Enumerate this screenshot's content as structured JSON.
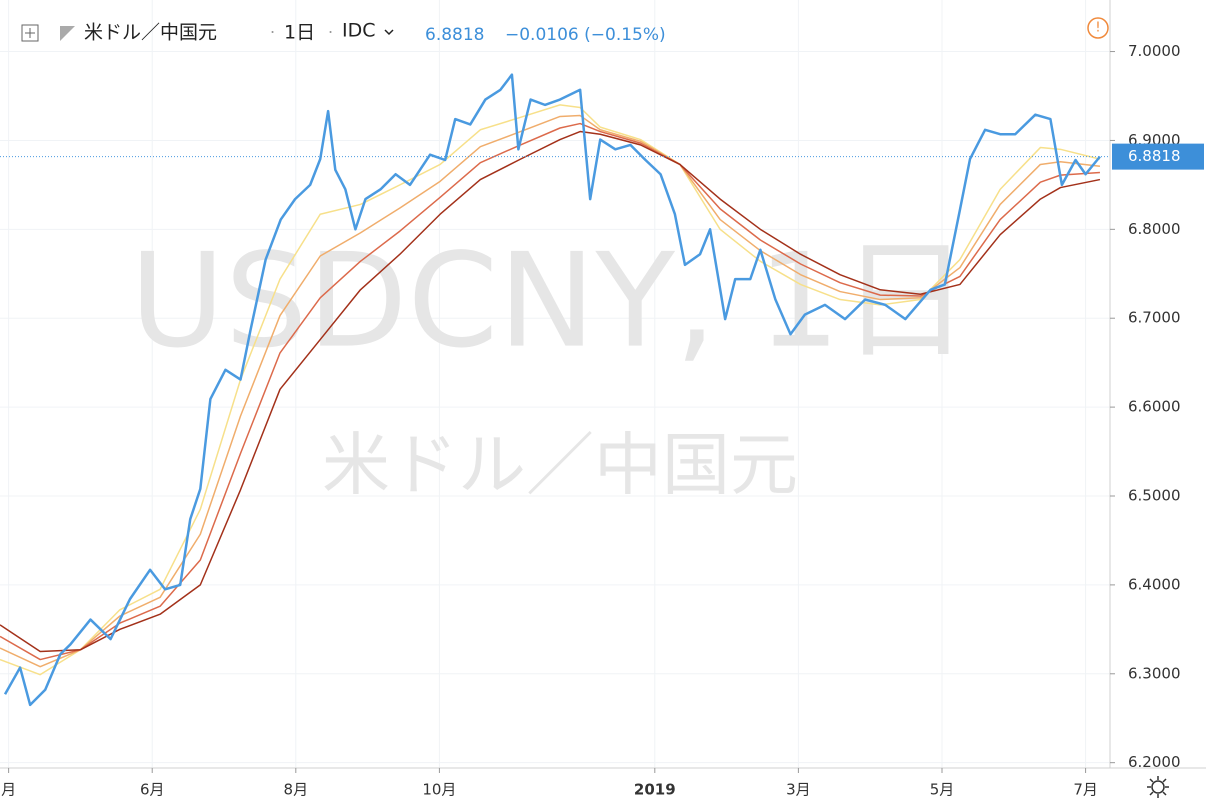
{
  "header": {
    "symbol": "米ドル／中国元",
    "interval": "1日",
    "source": "IDC",
    "last": 6.8818,
    "change": "−0.0106 (−0.15%)"
  },
  "watermark": {
    "line1": "USDCNY, 1日",
    "line2": "米ドル／中国元"
  },
  "chart_data": {
    "type": "line",
    "xlim": [
      3.88,
      19.34
    ],
    "ylim": [
      6.194,
      7.058
    ],
    "xticks": [
      {
        "value": 4,
        "label": "月"
      },
      {
        "value": 6,
        "label": "6月"
      },
      {
        "value": 8,
        "label": "8月"
      },
      {
        "value": 10,
        "label": "10月"
      },
      {
        "value": 13,
        "label": "2019"
      },
      {
        "value": 15,
        "label": "3月"
      },
      {
        "value": 17,
        "label": "5月"
      },
      {
        "value": 19,
        "label": "7月"
      }
    ],
    "yticks": [
      {
        "value": 6.2,
        "label": "6.2000"
      },
      {
        "value": 6.3,
        "label": "6.3000"
      },
      {
        "value": 6.4,
        "label": "6.4000"
      },
      {
        "value": 6.5,
        "label": "6.5000"
      },
      {
        "value": 6.6,
        "label": "6.6000"
      },
      {
        "value": 6.7,
        "label": "6.7000"
      },
      {
        "value": 6.8,
        "label": "6.8000"
      },
      {
        "value": 6.9,
        "label": "6.9000"
      },
      {
        "value": 7.0,
        "label": "7.0000"
      }
    ],
    "grid": true,
    "series": [
      {
        "color": "#f7e08a",
        "x": [
          3.88,
          4.44,
          5.0,
          5.55,
          6.11,
          6.67,
          7.23,
          7.78,
          8.34,
          8.9,
          9.45,
          10.01,
          10.57,
          11.13,
          11.68,
          11.96,
          12.24,
          12.8,
          13.35,
          13.91,
          14.47,
          15.03,
          15.58,
          16.14,
          16.7,
          17.25,
          17.81,
          18.37,
          18.65,
          19.2
        ],
        "values": [
          6.316,
          6.299,
          6.327,
          6.372,
          6.395,
          6.485,
          6.631,
          6.744,
          6.817,
          6.828,
          6.85,
          6.873,
          6.912,
          6.926,
          6.94,
          6.937,
          6.915,
          6.901,
          6.873,
          6.8,
          6.764,
          6.738,
          6.721,
          6.715,
          6.721,
          6.766,
          6.845,
          6.892,
          6.89,
          6.879
        ]
      },
      {
        "color": "#f0ad6c",
        "x": [
          3.88,
          4.44,
          5.0,
          5.55,
          6.11,
          6.67,
          7.23,
          7.78,
          8.34,
          8.9,
          9.45,
          10.01,
          10.57,
          11.13,
          11.68,
          11.96,
          12.24,
          12.8,
          13.35,
          13.91,
          14.47,
          15.03,
          15.58,
          16.14,
          16.7,
          17.25,
          17.81,
          18.37,
          18.65,
          19.2
        ],
        "values": [
          6.329,
          6.308,
          6.327,
          6.365,
          6.386,
          6.457,
          6.59,
          6.703,
          6.77,
          6.796,
          6.824,
          6.854,
          6.893,
          6.91,
          6.927,
          6.928,
          6.912,
          6.899,
          6.873,
          6.811,
          6.776,
          6.749,
          6.73,
          6.721,
          6.723,
          6.757,
          6.828,
          6.873,
          6.876,
          6.871
        ]
      },
      {
        "color": "#dc6a4b",
        "x": [
          3.88,
          4.44,
          5.0,
          5.55,
          6.11,
          6.67,
          7.23,
          7.78,
          8.34,
          8.9,
          9.45,
          10.01,
          10.57,
          11.13,
          11.68,
          11.96,
          12.24,
          12.8,
          13.35,
          13.91,
          14.47,
          15.03,
          15.58,
          16.14,
          16.7,
          17.25,
          17.81,
          18.37,
          18.65,
          19.2
        ],
        "values": [
          6.342,
          6.316,
          6.327,
          6.357,
          6.376,
          6.428,
          6.548,
          6.661,
          6.723,
          6.764,
          6.798,
          6.836,
          6.875,
          6.895,
          6.914,
          6.919,
          6.91,
          6.897,
          6.873,
          6.823,
          6.788,
          6.761,
          6.74,
          6.726,
          6.725,
          6.747,
          6.811,
          6.853,
          6.861,
          6.864
        ]
      },
      {
        "color": "#a3311a",
        "x": [
          3.88,
          4.44,
          5.0,
          5.55,
          6.11,
          6.67,
          7.23,
          7.78,
          8.34,
          8.9,
          9.45,
          10.01,
          10.57,
          11.13,
          11.68,
          11.96,
          12.24,
          12.8,
          13.35,
          13.91,
          14.47,
          15.03,
          15.58,
          16.14,
          16.7,
          17.25,
          17.81,
          18.37,
          18.65,
          19.2
        ],
        "values": [
          6.355,
          6.325,
          6.327,
          6.35,
          6.367,
          6.4,
          6.507,
          6.62,
          6.676,
          6.732,
          6.772,
          6.817,
          6.856,
          6.879,
          6.901,
          6.91,
          6.907,
          6.895,
          6.873,
          6.834,
          6.8,
          6.772,
          6.749,
          6.732,
          6.727,
          6.738,
          6.794,
          6.834,
          6.847,
          6.856
        ]
      },
      {
        "color": "#4a9ae0",
        "x": [
          3.95,
          4.16,
          4.3,
          4.51,
          4.72,
          4.86,
          5.14,
          5.42,
          5.69,
          5.97,
          6.18,
          6.39,
          6.53,
          6.67,
          6.81,
          7.02,
          7.23,
          7.37,
          7.58,
          7.79,
          7.99,
          8.2,
          8.34,
          8.45,
          8.55,
          8.69,
          8.83,
          8.97,
          9.18,
          9.39,
          9.59,
          9.87,
          10.08,
          10.22,
          10.43,
          10.64,
          10.85,
          11.01,
          11.1,
          11.27,
          11.47,
          11.68,
          11.96,
          12.1,
          12.24,
          12.45,
          12.66,
          12.87,
          13.08,
          13.28,
          13.42,
          13.63,
          13.77,
          13.98,
          14.12,
          14.33,
          14.47,
          14.68,
          14.89,
          15.09,
          15.37,
          15.65,
          15.93,
          16.21,
          16.49,
          16.84,
          17.04,
          17.25,
          17.39,
          17.6,
          17.81,
          18.02,
          18.3,
          18.51,
          18.67,
          18.86,
          19.0,
          19.2
        ],
        "values": [
          6.277,
          6.307,
          6.265,
          6.282,
          6.322,
          6.333,
          6.361,
          6.339,
          6.384,
          6.417,
          6.395,
          6.4,
          6.474,
          6.508,
          6.609,
          6.642,
          6.631,
          6.687,
          6.766,
          6.811,
          6.834,
          6.85,
          6.879,
          6.933,
          6.867,
          6.845,
          6.8,
          6.834,
          6.845,
          6.862,
          6.85,
          6.884,
          6.878,
          6.924,
          6.918,
          6.946,
          6.957,
          6.974,
          6.89,
          6.946,
          6.94,
          6.946,
          6.957,
          6.834,
          6.901,
          6.89,
          6.895,
          6.878,
          6.862,
          6.817,
          6.76,
          6.772,
          6.8,
          6.699,
          6.744,
          6.744,
          6.777,
          6.721,
          6.682,
          6.704,
          6.715,
          6.699,
          6.721,
          6.715,
          6.699,
          6.732,
          6.738,
          6.822,
          6.879,
          6.912,
          6.907,
          6.907,
          6.929,
          6.924,
          6.85,
          6.878,
          6.862,
          6.8818
        ]
      }
    ]
  }
}
